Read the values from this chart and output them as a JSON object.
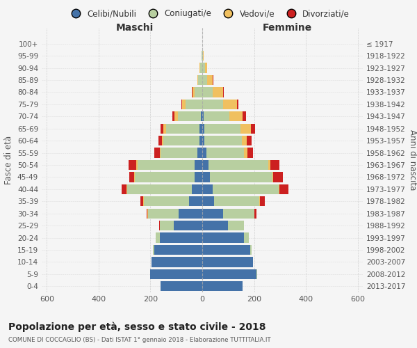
{
  "age_groups": [
    "0-4",
    "5-9",
    "10-14",
    "15-19",
    "20-24",
    "25-29",
    "30-34",
    "35-39",
    "40-44",
    "45-49",
    "50-54",
    "55-59",
    "60-64",
    "65-69",
    "70-74",
    "75-79",
    "80-84",
    "85-89",
    "90-94",
    "95-99",
    "100+"
  ],
  "birth_years": [
    "2013-2017",
    "2008-2012",
    "2003-2007",
    "1998-2002",
    "1993-1997",
    "1988-1992",
    "1983-1987",
    "1978-1982",
    "1973-1977",
    "1968-1972",
    "1963-1967",
    "1958-1962",
    "1953-1957",
    "1948-1952",
    "1943-1947",
    "1938-1942",
    "1933-1937",
    "1928-1932",
    "1923-1927",
    "1918-1922",
    "≤ 1917"
  ],
  "male": {
    "celibi": [
      160,
      200,
      195,
      185,
      165,
      110,
      90,
      50,
      40,
      30,
      30,
      20,
      10,
      10,
      5,
      0,
      0,
      0,
      0,
      0,
      0
    ],
    "coniugati": [
      0,
      1,
      2,
      5,
      15,
      55,
      120,
      175,
      250,
      230,
      220,
      140,
      140,
      130,
      90,
      65,
      30,
      15,
      8,
      2,
      0
    ],
    "vedovi": [
      0,
      0,
      0,
      0,
      0,
      0,
      1,
      2,
      3,
      3,
      5,
      5,
      5,
      10,
      12,
      12,
      8,
      5,
      2,
      0,
      0
    ],
    "divorziati": [
      0,
      0,
      0,
      0,
      1,
      2,
      5,
      12,
      18,
      20,
      30,
      20,
      15,
      12,
      8,
      3,
      2,
      0,
      0,
      0,
      0
    ]
  },
  "female": {
    "nubili": [
      155,
      210,
      195,
      185,
      160,
      100,
      80,
      45,
      40,
      30,
      25,
      15,
      8,
      8,
      5,
      0,
      0,
      0,
      0,
      0,
      0
    ],
    "coniugate": [
      0,
      1,
      2,
      5,
      20,
      60,
      120,
      175,
      255,
      240,
      230,
      145,
      145,
      140,
      100,
      80,
      40,
      20,
      10,
      3,
      0
    ],
    "vedove": [
      0,
      0,
      0,
      0,
      0,
      0,
      1,
      2,
      3,
      5,
      8,
      15,
      20,
      40,
      50,
      55,
      40,
      20,
      8,
      2,
      0
    ],
    "divorziate": [
      0,
      0,
      0,
      0,
      1,
      2,
      8,
      20,
      35,
      35,
      35,
      22,
      18,
      15,
      15,
      5,
      2,
      2,
      0,
      0,
      0
    ]
  },
  "colors": {
    "celibi": "#4472a8",
    "coniugati": "#b8cfa0",
    "vedovi": "#f0c060",
    "divorziati": "#cc2020"
  },
  "title": "Popolazione per età, sesso e stato civile - 2018",
  "subtitle": "COMUNE DI COCCAGLIO (BS) - Dati ISTAT 1° gennaio 2018 - Elaborazione TUTTITALIA.IT",
  "xlabel_left": "Maschi",
  "xlabel_right": "Femmine",
  "ylabel_left": "Fasce di età",
  "ylabel_right": "Anni di nascita",
  "xlim": 620,
  "legend_labels": [
    "Celibi/Nubili",
    "Coniugati/e",
    "Vedovi/e",
    "Divorziati/e"
  ],
  "background_color": "#f5f5f5"
}
